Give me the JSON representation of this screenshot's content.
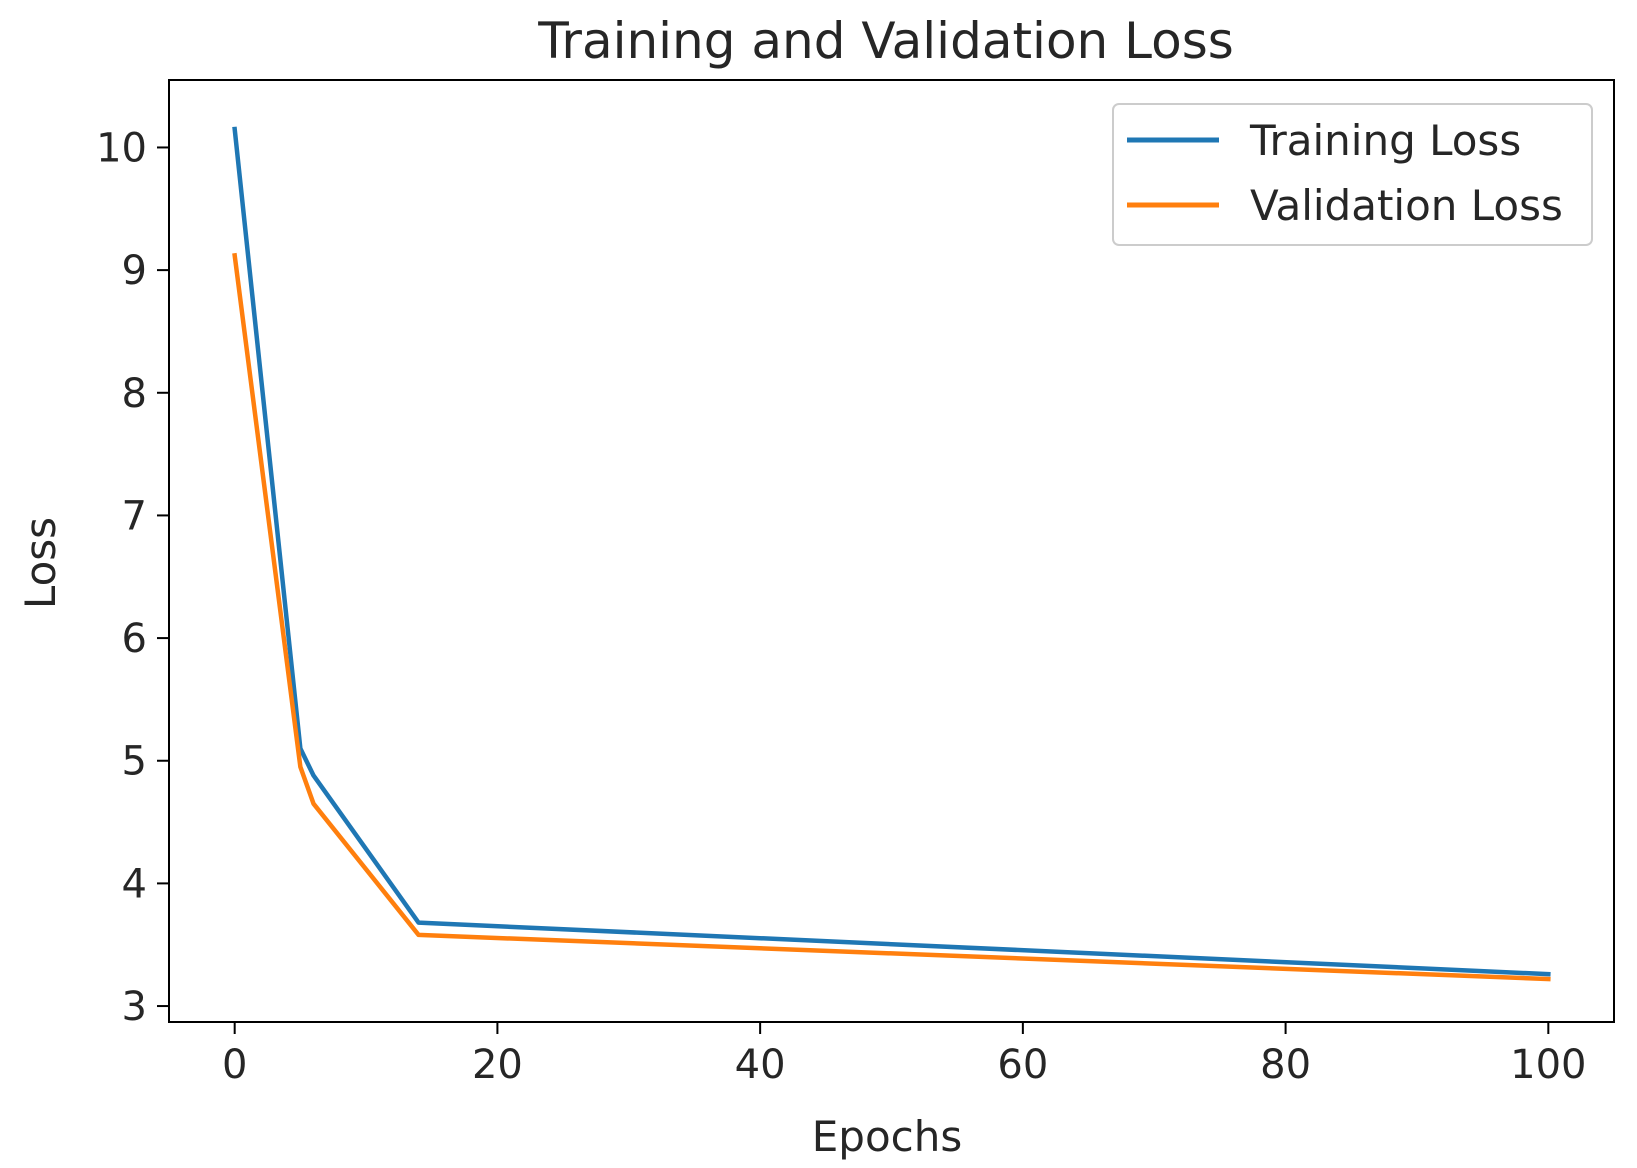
{
  "chart_data": {
    "type": "line",
    "title": "Training and Validation Loss",
    "xlabel": "Epochs",
    "ylabel": "Loss",
    "xlim": [
      -5,
      105
    ],
    "ylim": [
      2.87,
      10.55
    ],
    "xticks": [
      0,
      20,
      40,
      60,
      80,
      100
    ],
    "yticks": [
      3,
      4,
      5,
      6,
      7,
      8,
      9,
      10
    ],
    "grid": false,
    "legend_position": "top-right",
    "series": [
      {
        "name": "Training Loss",
        "color": "#1f77b4",
        "x": [
          0,
          5,
          6,
          14,
          100
        ],
        "y": [
          10.15,
          5.1,
          4.88,
          3.68,
          3.26
        ]
      },
      {
        "name": "Validation Loss",
        "color": "#ff7f0e",
        "x": [
          0,
          5,
          6,
          14,
          100
        ],
        "y": [
          9.12,
          4.95,
          4.65,
          3.58,
          3.22
        ]
      }
    ]
  }
}
